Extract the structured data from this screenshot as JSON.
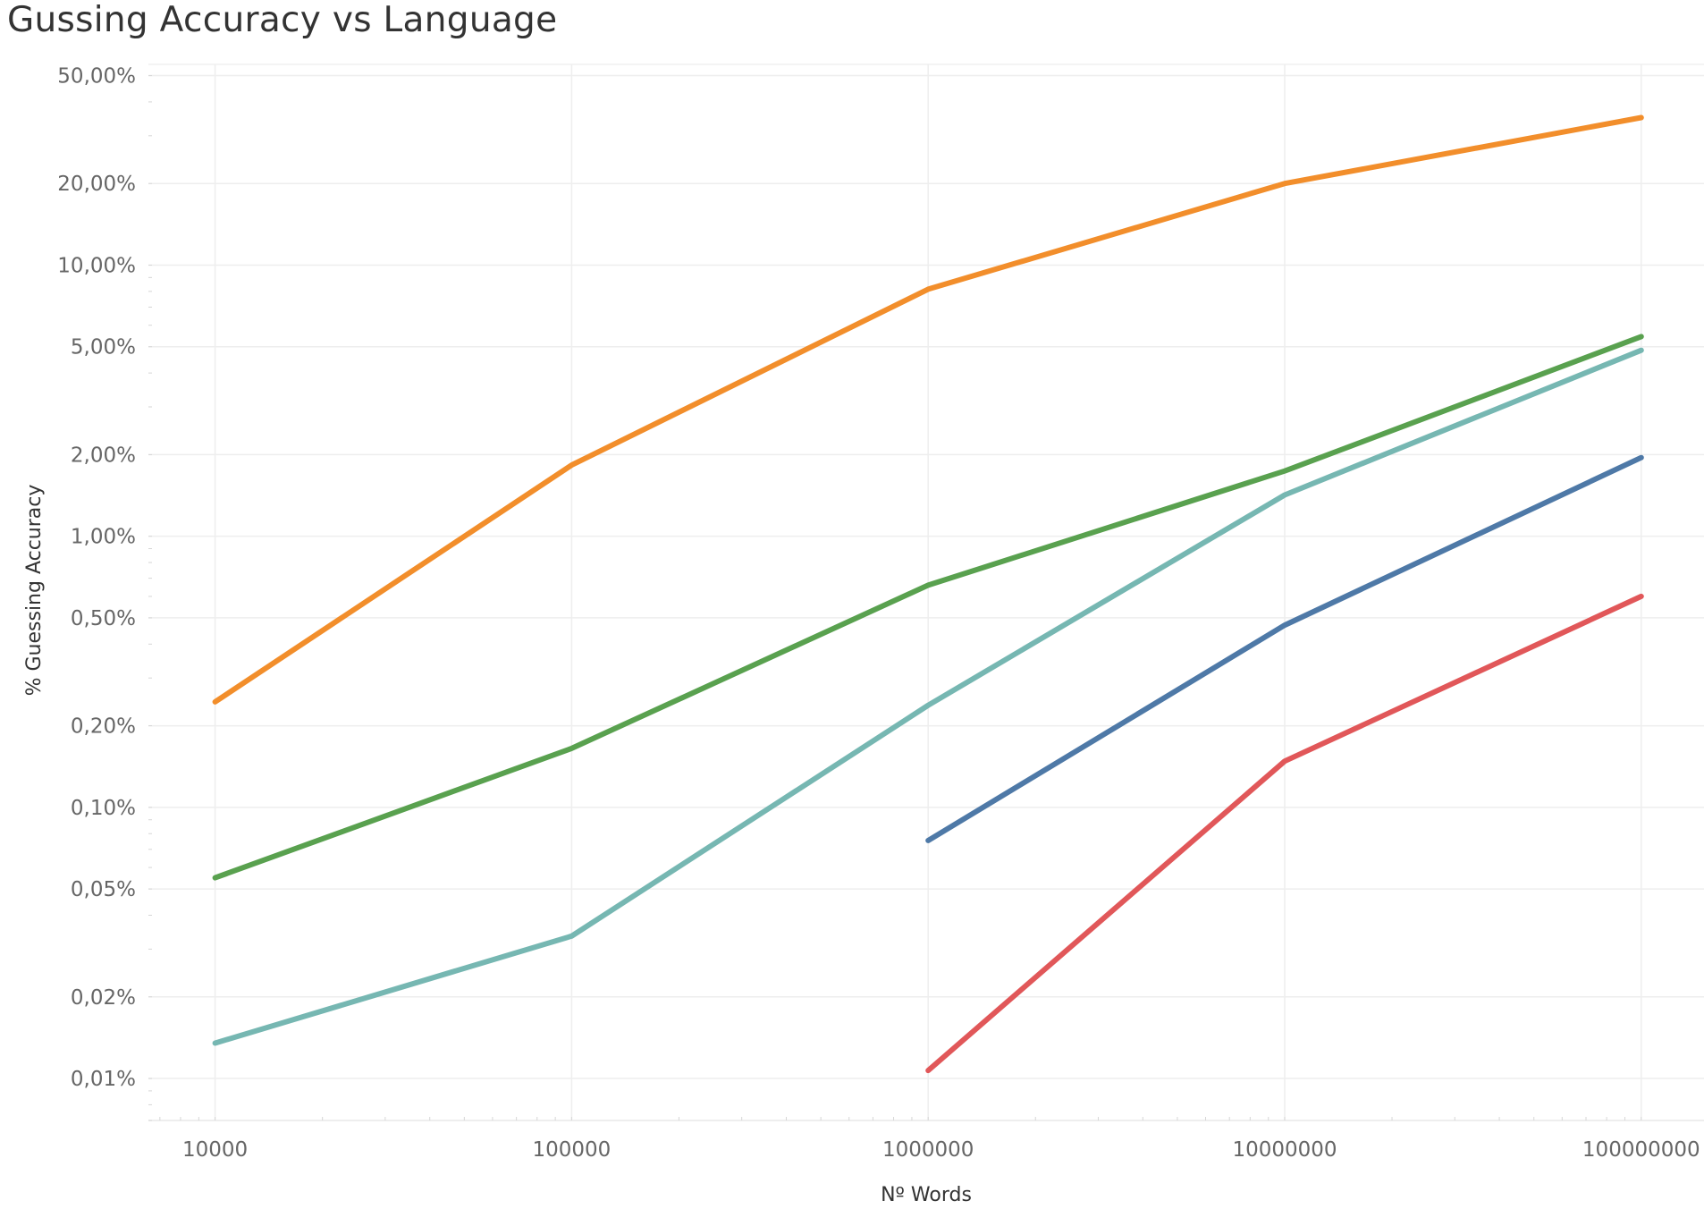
{
  "chart_data": {
    "type": "line",
    "title": "Gussing Accuracy vs Language",
    "xlabel": "Nº Words",
    "ylabel": "% Guessing Accuracy",
    "x_scale": "log",
    "y_scale": "log",
    "x": [
      10000,
      100000,
      1000000,
      10000000,
      100000000
    ],
    "x_tick_labels": [
      "10000",
      "100000",
      "1000000",
      "10000000",
      "100000000"
    ],
    "y_ticks": [
      0.01,
      0.02,
      0.05,
      0.1,
      0.2,
      0.5,
      1,
      2,
      5,
      10,
      20,
      50
    ],
    "y_tick_labels": [
      "0,01%",
      "0,02%",
      "0,05%",
      "0,10%",
      "0,20%",
      "0,50%",
      "1,00%",
      "2,00%",
      "5,00%",
      "10,00%",
      "20,00%",
      "50,00%"
    ],
    "xlim": [
      6500,
      150000000
    ],
    "ylim": [
      0.007,
      55
    ],
    "grid": true,
    "series": [
      {
        "color": "#f28e2b",
        "values": [
          0.245,
          1.83,
          8.15,
          20,
          35
        ]
      },
      {
        "color": "#59a14f",
        "values": [
          0.055,
          0.165,
          0.66,
          1.74,
          5.45
        ]
      },
      {
        "color": "#76b7b2",
        "values": [
          0.0135,
          0.0335,
          0.238,
          1.42,
          4.85
        ]
      },
      {
        "color": "#4e79a7",
        "values": [
          null,
          null,
          0.0755,
          0.47,
          1.95
        ]
      },
      {
        "color": "#e15759",
        "values": [
          null,
          null,
          0.0107,
          0.148,
          0.6
        ]
      }
    ]
  }
}
